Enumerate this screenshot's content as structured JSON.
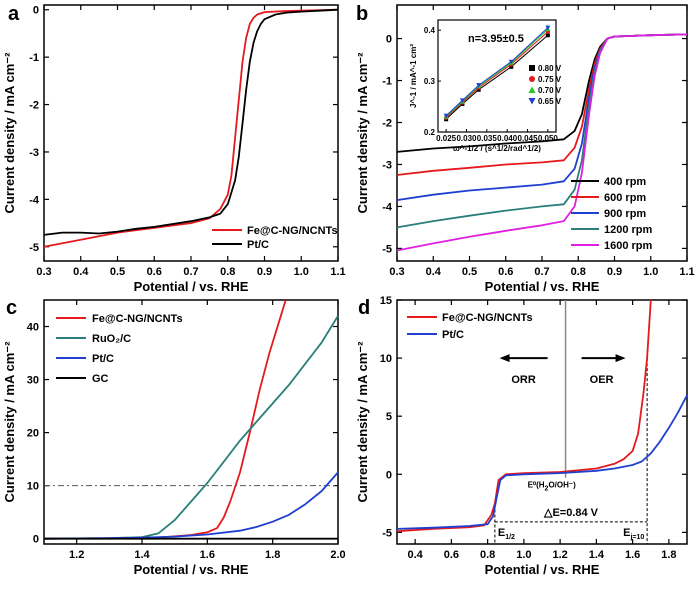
{
  "chart_data": [
    {
      "panel": "a",
      "type": "line",
      "xlabel": "Potential / vs. RHE",
      "ylabel": "Current density / mA cm⁻²",
      "xlim": [
        0.3,
        1.1
      ],
      "ylim": [
        -5.3,
        0.1
      ],
      "xticks": [
        "0.3",
        "0.4",
        "0.5",
        "0.6",
        "0.7",
        "0.8",
        "0.9",
        "1.0",
        "1.1"
      ],
      "yticks": [
        "0",
        "-1",
        "-2",
        "-3",
        "-4",
        "-5"
      ],
      "legend_position": "bottom-right",
      "series": [
        {
          "name": "Fe@C-NG/NCNTs",
          "color": "#e41a1c",
          "x": [
            0.3,
            0.4,
            0.5,
            0.6,
            0.7,
            0.75,
            0.78,
            0.8,
            0.81,
            0.82,
            0.83,
            0.84,
            0.85,
            0.86,
            0.87,
            0.88,
            0.9,
            0.95,
            1.0,
            1.05,
            1.1
          ],
          "y": [
            -5.0,
            -4.85,
            -4.7,
            -4.6,
            -4.5,
            -4.4,
            -4.2,
            -3.9,
            -3.5,
            -2.7,
            -1.9,
            -1.1,
            -0.6,
            -0.3,
            -0.17,
            -0.1,
            -0.05,
            -0.03,
            -0.02,
            -0.01,
            0
          ]
        },
        {
          "name": "Pt/C",
          "color": "#000000",
          "x": [
            0.3,
            0.35,
            0.4,
            0.45,
            0.5,
            0.55,
            0.6,
            0.65,
            0.7,
            0.75,
            0.78,
            0.8,
            0.82,
            0.83,
            0.84,
            0.85,
            0.86,
            0.87,
            0.88,
            0.89,
            0.9,
            0.93,
            0.96,
            1.0,
            1.05,
            1.1
          ],
          "y": [
            -4.75,
            -4.7,
            -4.7,
            -4.72,
            -4.68,
            -4.62,
            -4.58,
            -4.52,
            -4.46,
            -4.38,
            -4.3,
            -4.1,
            -3.6,
            -3.1,
            -2.4,
            -1.7,
            -1.1,
            -0.7,
            -0.45,
            -0.3,
            -0.2,
            -0.1,
            -0.06,
            -0.04,
            -0.02,
            0
          ]
        }
      ]
    },
    {
      "panel": "b",
      "type": "line",
      "xlabel": "Potential / vs. RHE",
      "ylabel": "Current density / mA cm⁻²",
      "xlim": [
        0.3,
        1.1
      ],
      "ylim": [
        -5.3,
        0.8
      ],
      "xticks": [
        "0.3",
        "0.4",
        "0.5",
        "0.6",
        "0.7",
        "0.8",
        "0.9",
        "1.0",
        "1.1"
      ],
      "yticks": [
        "0",
        "-1",
        "-2",
        "-3",
        "-4",
        "-5"
      ],
      "legend_position": "bottom-right",
      "series": [
        {
          "name": "400 rpm",
          "color": "#000000",
          "x": [
            0.3,
            0.4,
            0.5,
            0.6,
            0.7,
            0.76,
            0.79,
            0.81,
            0.83,
            0.845,
            0.86,
            0.88,
            0.9,
            1.0,
            1.1
          ],
          "y": [
            -2.7,
            -2.62,
            -2.57,
            -2.5,
            -2.45,
            -2.4,
            -2.2,
            -1.8,
            -1.0,
            -0.5,
            -0.2,
            0.0,
            0.05,
            0.08,
            0.1
          ]
        },
        {
          "name": "600 rpm",
          "color": "#e41a1c",
          "x": [
            0.3,
            0.4,
            0.5,
            0.6,
            0.7,
            0.76,
            0.79,
            0.81,
            0.83,
            0.845,
            0.86,
            0.88,
            0.9,
            1.0,
            1.1
          ],
          "y": [
            -3.25,
            -3.15,
            -3.08,
            -3.0,
            -2.95,
            -2.9,
            -2.6,
            -2.1,
            -1.2,
            -0.6,
            -0.25,
            0.0,
            0.05,
            0.08,
            0.1
          ]
        },
        {
          "name": "900 rpm",
          "color": "#1f3fd1",
          "x": [
            0.3,
            0.4,
            0.5,
            0.6,
            0.7,
            0.76,
            0.79,
            0.81,
            0.83,
            0.845,
            0.86,
            0.88,
            0.9,
            1.0,
            1.1
          ],
          "y": [
            -3.85,
            -3.72,
            -3.62,
            -3.55,
            -3.48,
            -3.4,
            -3.1,
            -2.5,
            -1.4,
            -0.7,
            -0.28,
            0.0,
            0.05,
            0.08,
            0.1
          ]
        },
        {
          "name": "1200 rpm",
          "color": "#2a7f7a",
          "x": [
            0.3,
            0.4,
            0.5,
            0.6,
            0.7,
            0.76,
            0.79,
            0.81,
            0.83,
            0.845,
            0.86,
            0.88,
            0.9,
            1.0,
            1.1
          ],
          "y": [
            -4.5,
            -4.35,
            -4.22,
            -4.1,
            -4.0,
            -3.95,
            -3.6,
            -2.9,
            -1.6,
            -0.8,
            -0.3,
            0.0,
            0.05,
            0.08,
            0.1
          ]
        },
        {
          "name": "1600 rpm",
          "color": "#e020e0",
          "x": [
            0.3,
            0.4,
            0.5,
            0.6,
            0.7,
            0.76,
            0.79,
            0.81,
            0.83,
            0.845,
            0.86,
            0.88,
            0.9,
            1.0,
            1.1
          ],
          "y": [
            -5.05,
            -4.88,
            -4.72,
            -4.58,
            -4.45,
            -4.35,
            -4.0,
            -3.2,
            -1.8,
            -0.9,
            -0.35,
            0.0,
            0.05,
            0.08,
            0.1
          ]
        }
      ],
      "inset": {
        "type": "scatter",
        "title": "n=3.95±0.5",
        "xlabel": "ω^-1/2 / (s^1/2/rad^1/2)",
        "ylabel": "J^-1 / mA^-1 cm²",
        "xlim": [
          0.023,
          0.052
        ],
        "ylim": [
          0.2,
          0.42
        ],
        "xticks": [
          "0.025",
          "0.030",
          "0.035",
          "0.040",
          "0.045",
          "0.050"
        ],
        "yticks": [
          "0.2",
          "0.3",
          "0.4"
        ],
        "x": [
          0.025,
          0.029,
          0.033,
          0.041,
          0.05
        ],
        "series": [
          {
            "name": "0.80 V",
            "color": "#000000",
            "marker": "square",
            "y": [
              0.225,
              0.255,
              0.283,
              0.328,
              0.39
            ]
          },
          {
            "name": "0.75 V",
            "color": "#e41a1c",
            "marker": "circle",
            "y": [
              0.228,
              0.258,
              0.287,
              0.333,
              0.397
            ]
          },
          {
            "name": "0.70 V",
            "color": "#22cc22",
            "marker": "triangle-up",
            "y": [
              0.23,
              0.26,
              0.29,
              0.336,
              0.402
            ]
          },
          {
            "name": "0.65 V",
            "color": "#1f3fd1",
            "marker": "triangle-down",
            "y": [
              0.232,
              0.262,
              0.292,
              0.338,
              0.405
            ]
          }
        ]
      }
    },
    {
      "panel": "c",
      "type": "line",
      "xlabel": "Potential / vs. RHE",
      "ylabel": "Current density / mA cm⁻²",
      "xlim": [
        1.1,
        2.0
      ],
      "ylim": [
        -1,
        45
      ],
      "xticks": [
        "1.2",
        "1.4",
        "1.6",
        "1.8",
        "2.0"
      ],
      "yticks": [
        "0",
        "10",
        "20",
        "30",
        "40"
      ],
      "reference_line_y": 10,
      "legend_position": "top-left",
      "series": [
        {
          "name": "Fe@C-NG/NCNTs",
          "color": "#e41a1c",
          "x": [
            1.1,
            1.3,
            1.45,
            1.55,
            1.6,
            1.63,
            1.65,
            1.67,
            1.7,
            1.73,
            1.76,
            1.79,
            1.82,
            1.84
          ],
          "y": [
            0,
            0.05,
            0.2,
            0.7,
            1.2,
            2.0,
            4.0,
            7.0,
            12.5,
            20,
            28,
            35,
            41,
            45
          ]
        },
        {
          "name": "RuO₂/C",
          "color": "#2a7f7a",
          "x": [
            1.1,
            1.3,
            1.4,
            1.45,
            1.5,
            1.55,
            1.6,
            1.65,
            1.7,
            1.75,
            1.8,
            1.85,
            1.9,
            1.95,
            2.0
          ],
          "y": [
            0,
            0.1,
            0.3,
            1.0,
            3.5,
            7.0,
            10.5,
            14.5,
            18.5,
            22,
            25.5,
            29,
            33,
            37,
            42
          ]
        },
        {
          "name": "Pt/C",
          "color": "#1f3fd1",
          "x": [
            1.1,
            1.3,
            1.4,
            1.5,
            1.6,
            1.7,
            1.75,
            1.8,
            1.85,
            1.9,
            1.95,
            2.0
          ],
          "y": [
            0,
            0.1,
            0.2,
            0.4,
            0.8,
            1.5,
            2.2,
            3.2,
            4.5,
            6.5,
            9.0,
            12.5
          ]
        },
        {
          "name": "GC",
          "color": "#000000",
          "x": [
            1.1,
            2.0
          ],
          "y": [
            0,
            0
          ]
        }
      ]
    },
    {
      "panel": "d",
      "type": "line",
      "xlabel": "Potential / vs. RHE",
      "ylabel": "Current density / mA cm⁻²",
      "xlim": [
        0.3,
        1.9
      ],
      "ylim": [
        -6,
        15
      ],
      "xticks": [
        "0.4",
        "0.6",
        "0.8",
        "1.0",
        "1.2",
        "1.4",
        "1.6",
        "1.8"
      ],
      "yticks": [
        "-5",
        "0",
        "5",
        "10",
        "15"
      ],
      "legend_position": "top-left",
      "annotations": {
        "orr": "ORR",
        "oer": "OER",
        "eq_main": "E⁰(H",
        "eq_sub2": "2",
        "eq_tail": "O/OH⁻)",
        "delta_e": "△E=0.84 V",
        "e_half_main": "E",
        "e_half_sub": "1/2",
        "e_j10_main": "E",
        "e_j10_sub": "j=10"
      },
      "e_half_x": 0.84,
      "e_j10_x": 1.68,
      "e0_x": 1.23,
      "series": [
        {
          "name": "Fe@C-NG/NCNTs",
          "color": "#e41a1c",
          "x": [
            0.3,
            0.5,
            0.7,
            0.78,
            0.82,
            0.84,
            0.86,
            0.9,
            1.0,
            1.2,
            1.4,
            1.5,
            1.55,
            1.6,
            1.63,
            1.66,
            1.68,
            1.7
          ],
          "y": [
            -4.9,
            -4.7,
            -4.55,
            -4.4,
            -3.5,
            -2.5,
            -0.5,
            0,
            0.1,
            0.2,
            0.5,
            0.9,
            1.3,
            2.0,
            3.5,
            7.0,
            10.0,
            15.0
          ]
        },
        {
          "name": "Pt/C",
          "color": "#1f3fd1",
          "x": [
            0.3,
            0.5,
            0.7,
            0.8,
            0.83,
            0.85,
            0.87,
            0.9,
            1.0,
            1.2,
            1.4,
            1.5,
            1.6,
            1.65,
            1.7,
            1.75,
            1.8,
            1.85,
            1.9
          ],
          "y": [
            -4.7,
            -4.6,
            -4.45,
            -4.3,
            -3.6,
            -2.0,
            -0.5,
            -0.1,
            0,
            0.1,
            0.3,
            0.5,
            0.8,
            1.1,
            1.8,
            2.8,
            4.0,
            5.3,
            6.8
          ]
        }
      ]
    }
  ]
}
